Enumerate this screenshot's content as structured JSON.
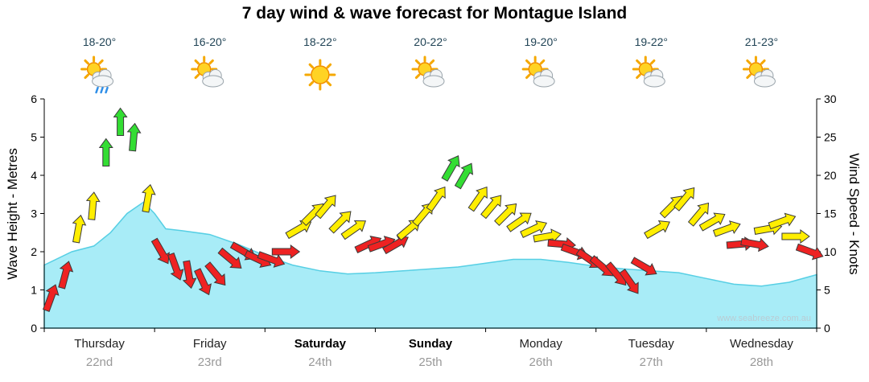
{
  "title": "7 day wind & wave forecast for Montague Island",
  "watermark": "www.seabreeze.com.au",
  "axes": {
    "left_label": "Wave Height - Metres",
    "right_label": "Wind Speed - Knots",
    "wave_ticks": [
      0,
      1,
      2,
      3,
      4,
      5,
      6
    ],
    "wind_ticks": [
      0,
      5,
      10,
      15,
      20,
      25,
      30
    ]
  },
  "colors": {
    "wave_fill": "#a8ecf7",
    "wave_stroke": "#57cfe4",
    "wind_low": "#ee2222",
    "wind_mid": "#ffee00",
    "wind_high": "#33dd33",
    "arrow_outline": "#3a3a3a",
    "temp_text": "#214456",
    "day_text": "#222222",
    "date_text": "#999999",
    "watermark_text": "#b9ccd4",
    "axis_line": "#000000"
  },
  "days": [
    {
      "name": "Thursday",
      "date": "22nd",
      "temp": "18-20°",
      "icon": "sun-cloud-rain",
      "bold": false
    },
    {
      "name": "Friday",
      "date": "23rd",
      "temp": "16-20°",
      "icon": "sun-cloud",
      "bold": false
    },
    {
      "name": "Saturday",
      "date": "24th",
      "temp": "18-22°",
      "icon": "sun",
      "bold": true
    },
    {
      "name": "Sunday",
      "date": "25th",
      "temp": "20-22°",
      "icon": "sun-cloud",
      "bold": true
    },
    {
      "name": "Monday",
      "date": "26th",
      "temp": "19-20°",
      "icon": "sun-cloud",
      "bold": false
    },
    {
      "name": "Tuesday",
      "date": "27th",
      "temp": "19-22°",
      "icon": "sun-cloud",
      "bold": false
    },
    {
      "name": "Wednesday",
      "date": "28th",
      "temp": "21-23°",
      "icon": "sun-cloud",
      "bold": false
    }
  ],
  "chart_data": {
    "type": "area+wind-arrows",
    "x_unit": "days (0 = start Thursday 22nd, 7 = end Wednesday 28th)",
    "x_range": [
      0,
      7
    ],
    "wave": {
      "name": "Wave Height (m)",
      "ylim": [
        0,
        6
      ],
      "t": [
        0,
        0.25,
        0.45,
        0.6,
        0.75,
        0.9,
        1.0,
        1.1,
        1.25,
        1.5,
        1.75,
        2.0,
        2.25,
        2.5,
        2.75,
        3.0,
        3.25,
        3.5,
        3.75,
        4.0,
        4.25,
        4.5,
        4.75,
        5.0,
        5.25,
        5.5,
        5.75,
        6.0,
        6.25,
        6.5,
        6.75,
        7.0
      ],
      "m": [
        1.65,
        2.0,
        2.15,
        2.5,
        3.0,
        3.3,
        3.0,
        2.6,
        2.55,
        2.45,
        2.2,
        1.9,
        1.65,
        1.5,
        1.42,
        1.45,
        1.5,
        1.55,
        1.6,
        1.7,
        1.8,
        1.8,
        1.72,
        1.62,
        1.55,
        1.5,
        1.45,
        1.3,
        1.15,
        1.1,
        1.2,
        1.4
      ]
    },
    "wind": {
      "name": "Wind Speed (knots)",
      "ylim": [
        0,
        30
      ],
      "color_thresholds": {
        "red_below": 12,
        "green_min": 20
      },
      "dir_note": "degrees arrow points, 0 = up, clockwise",
      "t": [
        0.06,
        0.19,
        0.31,
        0.44,
        0.56,
        0.69,
        0.81,
        0.94,
        1.06,
        1.19,
        1.31,
        1.44,
        1.56,
        1.69,
        1.81,
        1.94,
        2.06,
        2.19,
        2.31,
        2.44,
        2.56,
        2.69,
        2.81,
        2.94,
        3.06,
        3.19,
        3.31,
        3.44,
        3.56,
        3.69,
        3.81,
        3.94,
        4.06,
        4.19,
        4.31,
        4.44,
        4.56,
        4.69,
        4.81,
        4.94,
        5.06,
        5.19,
        5.31,
        5.44,
        5.56,
        5.69,
        5.81,
        5.94,
        6.06,
        6.19,
        6.31,
        6.44,
        6.56,
        6.69,
        6.81,
        6.94
      ],
      "kn": [
        4,
        7,
        13,
        16,
        23,
        27,
        25,
        17,
        10,
        8,
        7,
        6,
        7,
        9,
        10,
        9,
        9,
        10,
        13,
        15,
        16,
        14,
        13,
        11,
        11,
        11,
        13,
        15,
        17,
        21,
        20,
        17,
        16,
        15,
        14,
        13,
        12,
        11,
        10,
        9,
        8,
        7,
        6,
        8,
        13,
        16,
        17,
        15,
        14,
        13,
        11,
        11,
        13,
        14,
        12,
        10
      ],
      "dir": [
        20,
        15,
        10,
        5,
        0,
        0,
        5,
        10,
        150,
        160,
        170,
        155,
        140,
        130,
        120,
        115,
        110,
        90,
        60,
        45,
        40,
        45,
        55,
        65,
        70,
        60,
        50,
        40,
        35,
        30,
        30,
        35,
        40,
        45,
        55,
        65,
        80,
        95,
        110,
        125,
        130,
        140,
        145,
        120,
        60,
        45,
        40,
        40,
        60,
        70,
        85,
        100,
        80,
        70,
        90,
        110
      ]
    }
  }
}
